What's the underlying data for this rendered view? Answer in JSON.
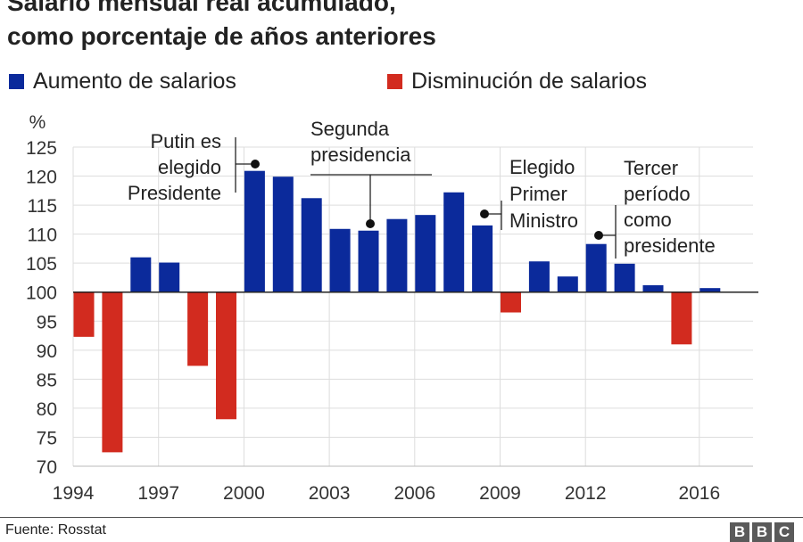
{
  "title_lines": [
    "Salario mensual real acumulado,",
    "como porcentaje de años anteriores"
  ],
  "legend": {
    "increase_label": "Aumento de salarios",
    "decrease_label": "Disminución de salarios"
  },
  "colors": {
    "increase": "#0b2a9b",
    "decrease": "#d22b1f",
    "grid": "#dddddd",
    "axis": "#222222"
  },
  "footer": {
    "source": "Fuente: Rosstat",
    "logo_letters": [
      "B",
      "B",
      "C"
    ]
  },
  "chart_data": {
    "type": "bar",
    "ylabel": "%",
    "baseline": 100,
    "ylim": [
      70,
      125
    ],
    "yticks": [
      70,
      75,
      80,
      85,
      90,
      95,
      100,
      105,
      110,
      115,
      120,
      125
    ],
    "xlim": [
      1994,
      2017.5
    ],
    "xticks": [
      "1994",
      "1997",
      "2000",
      "2003",
      "2006",
      "2009",
      "2012",
      "2016"
    ],
    "grid": true,
    "legend_position": "top",
    "series": [
      {
        "legend": "Aumento de salarios",
        "points": [
          {
            "year": 1996,
            "value": 106.0
          },
          {
            "year": 1997,
            "value": 105.1
          },
          {
            "year": 2000,
            "value": 120.9
          },
          {
            "year": 2001,
            "value": 119.9
          },
          {
            "year": 2002,
            "value": 116.2
          },
          {
            "year": 2003,
            "value": 110.9
          },
          {
            "year": 2004,
            "value": 110.6
          },
          {
            "year": 2005,
            "value": 112.6
          },
          {
            "year": 2006,
            "value": 113.3
          },
          {
            "year": 2007,
            "value": 117.2
          },
          {
            "year": 2008,
            "value": 111.5
          },
          {
            "year": 2010,
            "value": 105.3
          },
          {
            "year": 2011,
            "value": 102.7
          },
          {
            "year": 2012,
            "value": 108.3
          },
          {
            "year": 2013,
            "value": 104.9
          },
          {
            "year": 2014,
            "value": 101.2
          },
          {
            "year": 2016,
            "value": 100.7
          }
        ]
      },
      {
        "legend": "Disminución de salarios",
        "points": [
          {
            "year": 1994,
            "value": 92.3
          },
          {
            "year": 1995,
            "value": 72.4
          },
          {
            "year": 1998,
            "value": 87.3
          },
          {
            "year": 1999,
            "value": 78.1
          },
          {
            "year": 2009,
            "value": 96.5
          },
          {
            "year": 2015,
            "value": 91.0
          }
        ]
      }
    ],
    "annotations": [
      {
        "lines": [
          "Putin es",
          "elegido",
          "Presidente"
        ],
        "year": 2000,
        "value": 122.2,
        "align": "right"
      },
      {
        "lines": [
          "Segunda",
          "presidencia"
        ],
        "year": 2004,
        "value": 111.7,
        "align": "left"
      },
      {
        "lines": [
          "Elegido",
          "Primer",
          "Ministro"
        ],
        "year": 2008,
        "value": 113.7,
        "align": "left"
      },
      {
        "lines": [
          "Tercer",
          "período",
          "como",
          "presidente"
        ],
        "year": 2012,
        "value": 110.0,
        "align": "left"
      }
    ]
  }
}
